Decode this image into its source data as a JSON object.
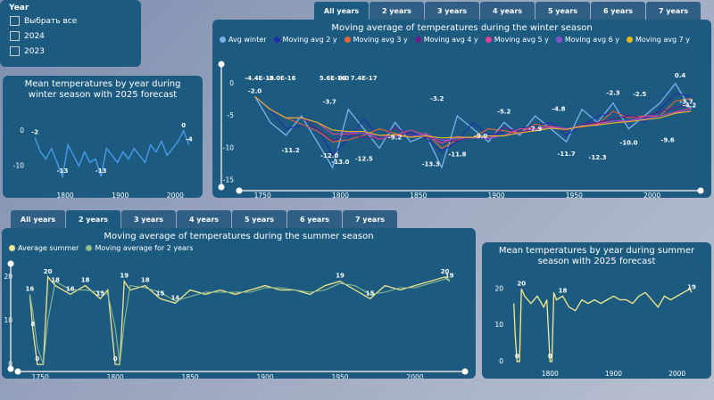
{
  "slicer": {
    "title": "Year",
    "options": [
      "Выбрать все",
      "2024",
      "2023"
    ]
  },
  "tabs_winter": [
    "All years",
    "2 years",
    "3 years",
    "4 years",
    "5 years",
    "6 years",
    "7 years"
  ],
  "tabs_summer": [
    "All years",
    "2 years",
    "3 years",
    "4 years",
    "5 years",
    "6 years",
    "7 years"
  ],
  "chart_data": [
    {
      "type": "line",
      "title": "Mean temperatures by year during winter season with 2025 forecast",
      "x": [
        1745,
        1755,
        1765,
        1775,
        1785,
        1795,
        1805,
        1815,
        1825,
        1835,
        1845,
        1855,
        1865,
        1875,
        1885,
        1895,
        1905,
        1915,
        1925,
        1935,
        1945,
        1955,
        1965,
        1975,
        1985,
        1995,
        2005,
        2015,
        2025
      ],
      "series": [
        {
          "name": "Avg winter",
          "color": "#4a9ff5",
          "values": [
            -2,
            -6,
            -8,
            -5,
            -9,
            -13,
            -4,
            -7,
            -10,
            -6,
            -9,
            -8,
            -13,
            -5,
            -7,
            -9,
            -6,
            -8,
            -5,
            -7,
            -9,
            -4,
            -6,
            -3,
            -7,
            -5,
            -3,
            0,
            -4
          ]
        }
      ],
      "xlim": [
        1735,
        2035
      ],
      "ylim": [
        -16,
        3
      ],
      "xticks": [
        1800,
        1900,
        2000
      ],
      "yticks": [
        0,
        -10
      ],
      "grid": false,
      "legend": false,
      "point_labels": [
        {
          "x": 1745,
          "y": -2
        },
        {
          "x": 1795,
          "y": -13
        },
        {
          "x": 1865,
          "y": -13
        },
        {
          "x": 2015,
          "y": 0
        },
        {
          "x": 2025,
          "y": -4
        }
      ]
    },
    {
      "type": "line",
      "title": "Moving average of temperatures during the winter season",
      "x": [
        1745,
        1755,
        1765,
        1775,
        1785,
        1795,
        1805,
        1815,
        1825,
        1835,
        1845,
        1855,
        1865,
        1875,
        1885,
        1895,
        1905,
        1915,
        1925,
        1935,
        1945,
        1955,
        1965,
        1975,
        1985,
        1995,
        2005,
        2015,
        2025
      ],
      "series": [
        {
          "name": "Avg winter",
          "color": "#7fb0f0",
          "values": [
            -2,
            -6,
            -8,
            -5,
            -9,
            -13,
            -4,
            -7,
            -10,
            -6,
            -9,
            -8,
            -13,
            -5,
            -7,
            -9,
            -6,
            -8,
            -5,
            -7,
            -9,
            -4,
            -6,
            -3,
            -7,
            -5,
            -3,
            0,
            -4
          ]
        },
        {
          "name": "Moving avg 2 y",
          "color": "#1f2fb0",
          "values": [
            -2,
            -4,
            -7,
            -6.5,
            -7,
            -11,
            -8.5,
            -5.5,
            -8.5,
            -8,
            -7.5,
            -8.5,
            -10.5,
            -9,
            -6,
            -8,
            -7.5,
            -7,
            -6.5,
            -6,
            -8,
            -6.5,
            -5,
            -4.5,
            -5,
            -6,
            -4,
            -1.5,
            -2
          ]
        },
        {
          "name": "Moving avg 3 y",
          "color": "#e6673a",
          "values": [
            -2,
            -4,
            -5.3,
            -6.3,
            -7.3,
            -9,
            -8.7,
            -8,
            -7,
            -7.7,
            -8.3,
            -7.7,
            -10,
            -8.7,
            -8.3,
            -7,
            -7.3,
            -7.7,
            -6.3,
            -6.7,
            -7,
            -6.7,
            -6.3,
            -4.3,
            -5.3,
            -5,
            -5,
            -2.7,
            -2.3
          ]
        },
        {
          "name": "Moving avg 4 y",
          "color": "#6b1f8a",
          "values": [
            -2,
            -4,
            -5.3,
            -5.3,
            -7,
            -8.8,
            -7.8,
            -8.3,
            -8.5,
            -6.8,
            -8,
            -8.3,
            -9,
            -8.8,
            -8.3,
            -8.5,
            -6.8,
            -7.5,
            -7,
            -6.5,
            -7.3,
            -6.3,
            -6,
            -5.5,
            -5,
            -5.3,
            -4.3,
            -3.8,
            -3
          ]
        },
        {
          "name": "Moving avg 5 y",
          "color": "#e0439a",
          "values": [
            -2,
            -4,
            -5.3,
            -5.3,
            -6,
            -7.8,
            -7.8,
            -7.6,
            -8.6,
            -8,
            -7.2,
            -8,
            -9.2,
            -8.2,
            -8.4,
            -8.4,
            -8,
            -7,
            -7,
            -6.6,
            -7,
            -6.6,
            -6.2,
            -5.8,
            -5.8,
            -5,
            -5,
            -4.4,
            -3.8
          ]
        },
        {
          "name": "Moving avg 6 y",
          "color": "#8a4fd0",
          "values": [
            -2,
            -4,
            -5.3,
            -5.3,
            -6,
            -7.2,
            -7.5,
            -7.7,
            -8,
            -8.2,
            -8.2,
            -7.8,
            -8.8,
            -8.5,
            -8.3,
            -8.5,
            -8,
            -7.7,
            -7.2,
            -6.8,
            -7,
            -6.5,
            -6.5,
            -5.8,
            -5.7,
            -5.5,
            -5,
            -4.5,
            -4.2
          ]
        },
        {
          "name": "Moving avg 7 y",
          "color": "#e6b820",
          "values": [
            -2,
            -4,
            -5.3,
            -5.3,
            -6,
            -7.2,
            -7.4,
            -7.4,
            -8,
            -7.9,
            -8.3,
            -8.1,
            -8.4,
            -8.3,
            -8.3,
            -8.1,
            -8.1,
            -7.6,
            -7.3,
            -6.9,
            -7.1,
            -6.6,
            -6.4,
            -6.1,
            -5.9,
            -5.6,
            -5.3,
            -4.6,
            -4.3
          ]
        }
      ],
      "xlim": [
        1735,
        2030
      ],
      "ylim": [
        -16,
        3
      ],
      "xticks": [
        1750,
        1800,
        1850,
        1900,
        1950,
        2000
      ],
      "yticks": [
        0,
        -5,
        -10,
        -15
      ],
      "grid": false,
      "legend": true,
      "point_labels": [
        {
          "x": 1748,
          "y": -4.4e-16,
          "label": "-4.4E-16"
        },
        {
          "x": 1745,
          "y": -2.0,
          "label": "-2.0"
        },
        {
          "x": 1762,
          "y": -3e-16,
          "label": "-3.0E-16"
        },
        {
          "x": 1795,
          "y": 5.6e-16,
          "label": "5.6E-16"
        },
        {
          "x": 1802,
          "y": 0.0,
          "label": "0.0"
        },
        {
          "x": 1815,
          "y": 7.4e-17,
          "label": "7.4E-17"
        },
        {
          "x": 1793,
          "y": -3.7
        },
        {
          "x": 1768,
          "y": -11.2
        },
        {
          "x": 1793,
          "y": -12.0,
          "label": "-12.0"
        },
        {
          "x": 1800,
          "y": -13.0,
          "label": "-13.0"
        },
        {
          "x": 1815,
          "y": -12.5
        },
        {
          "x": 1835,
          "y": -9.2
        },
        {
          "x": 1862,
          "y": -3.2
        },
        {
          "x": 1858,
          "y": -13.3
        },
        {
          "x": 1875,
          "y": -11.8
        },
        {
          "x": 1890,
          "y": -9.0,
          "label": "-9.0"
        },
        {
          "x": 1905,
          "y": -5.2
        },
        {
          "x": 1925,
          "y": -7.9
        },
        {
          "x": 1940,
          "y": -4.8
        },
        {
          "x": 1945,
          "y": -11.7
        },
        {
          "x": 1965,
          "y": -12.3
        },
        {
          "x": 1975,
          "y": -2.3
        },
        {
          "x": 1985,
          "y": -10.0,
          "label": "-10.0"
        },
        {
          "x": 1992,
          "y": -2.5
        },
        {
          "x": 2010,
          "y": -9.6
        },
        {
          "x": 2018,
          "y": 0.4
        },
        {
          "x": 2024,
          "y": -4.2
        },
        {
          "x": 2022,
          "y": -3.7
        }
      ]
    },
    {
      "type": "line",
      "title": "Moving average of temperatures during the summer season",
      "x": [
        1743,
        1745,
        1748,
        1752,
        1755,
        1760,
        1770,
        1780,
        1790,
        1795,
        1800,
        1803,
        1806,
        1810,
        1820,
        1830,
        1840,
        1850,
        1860,
        1870,
        1880,
        1890,
        1900,
        1910,
        1920,
        1930,
        1940,
        1950,
        1960,
        1970,
        1980,
        1990,
        2000,
        2010,
        2020,
        2023
      ],
      "series": [
        {
          "name": "Average summer",
          "color": "#f0e68c",
          "values": [
            16,
            8,
            0,
            0,
            20,
            18,
            16,
            18,
            15,
            17,
            0,
            0,
            19,
            17,
            18,
            15,
            14,
            17,
            16,
            17,
            16,
            17,
            18,
            17,
            17,
            16,
            18,
            19,
            17,
            15,
            18,
            17,
            18,
            19,
            20,
            19
          ]
        },
        {
          "name": "Moving average for 2 years",
          "color": "#8fbc8f",
          "values": [
            16,
            12,
            4,
            0,
            10,
            19,
            17,
            17,
            16.5,
            16,
            8.5,
            0,
            9.5,
            18,
            17.5,
            16.5,
            14.5,
            15.5,
            16.5,
            16.5,
            16.5,
            16.5,
            17.5,
            17.5,
            17,
            16.5,
            17,
            18.5,
            18,
            16,
            16.5,
            17.5,
            17.5,
            18.5,
            19.5,
            19.5
          ]
        }
      ],
      "xlim": [
        1735,
        2028
      ],
      "ylim": [
        -1,
        23
      ],
      "xticks": [
        1750,
        1800,
        1850,
        1900,
        1950,
        2000
      ],
      "yticks": [
        0,
        10,
        20
      ],
      "grid": false,
      "legend": true,
      "point_labels": [
        {
          "x": 1743,
          "y": 16
        },
        {
          "x": 1745,
          "y": 8
        },
        {
          "x": 1748,
          "y": 0
        },
        {
          "x": 1755,
          "y": 20
        },
        {
          "x": 1760,
          "y": 18
        },
        {
          "x": 1770,
          "y": 16
        },
        {
          "x": 1780,
          "y": 18
        },
        {
          "x": 1790,
          "y": 15
        },
        {
          "x": 1800,
          "y": 0
        },
        {
          "x": 1806,
          "y": 19
        },
        {
          "x": 1820,
          "y": 18
        },
        {
          "x": 1830,
          "y": 15
        },
        {
          "x": 1840,
          "y": 14
        },
        {
          "x": 1950,
          "y": 19
        },
        {
          "x": 1970,
          "y": 15
        },
        {
          "x": 2020,
          "y": 20
        },
        {
          "x": 2023,
          "y": 19
        }
      ]
    },
    {
      "type": "line",
      "title": "Mean temperatures by year during summer season with 2025 forecast",
      "x": [
        1743,
        1745,
        1748,
        1752,
        1755,
        1760,
        1770,
        1780,
        1790,
        1795,
        1800,
        1803,
        1806,
        1810,
        1820,
        1830,
        1840,
        1850,
        1860,
        1870,
        1880,
        1890,
        1900,
        1910,
        1920,
        1930,
        1940,
        1950,
        1960,
        1970,
        1980,
        1990,
        2000,
        2010,
        2020,
        2023
      ],
      "series": [
        {
          "name": "Average summer",
          "color": "#f5eb8c",
          "values": [
            16,
            8,
            0,
            0,
            20,
            18,
            16,
            18,
            15,
            17,
            0,
            0,
            19,
            17,
            18,
            15,
            14,
            17,
            16,
            17,
            16,
            17,
            18,
            17,
            17,
            16,
            18,
            19,
            17,
            15,
            18,
            17,
            18,
            19,
            20,
            19
          ]
        }
      ],
      "xlim": [
        1735,
        2030
      ],
      "ylim": [
        -1,
        23
      ],
      "xticks": [
        1800,
        1900,
        2000
      ],
      "yticks": [
        0,
        10,
        20
      ],
      "grid": false,
      "legend": false,
      "point_labels": [
        {
          "x": 1755,
          "y": 20
        },
        {
          "x": 1820,
          "y": 18
        },
        {
          "x": 1748,
          "y": 0
        },
        {
          "x": 1800,
          "y": 0
        },
        {
          "x": 2023,
          "y": 19
        }
      ]
    }
  ]
}
